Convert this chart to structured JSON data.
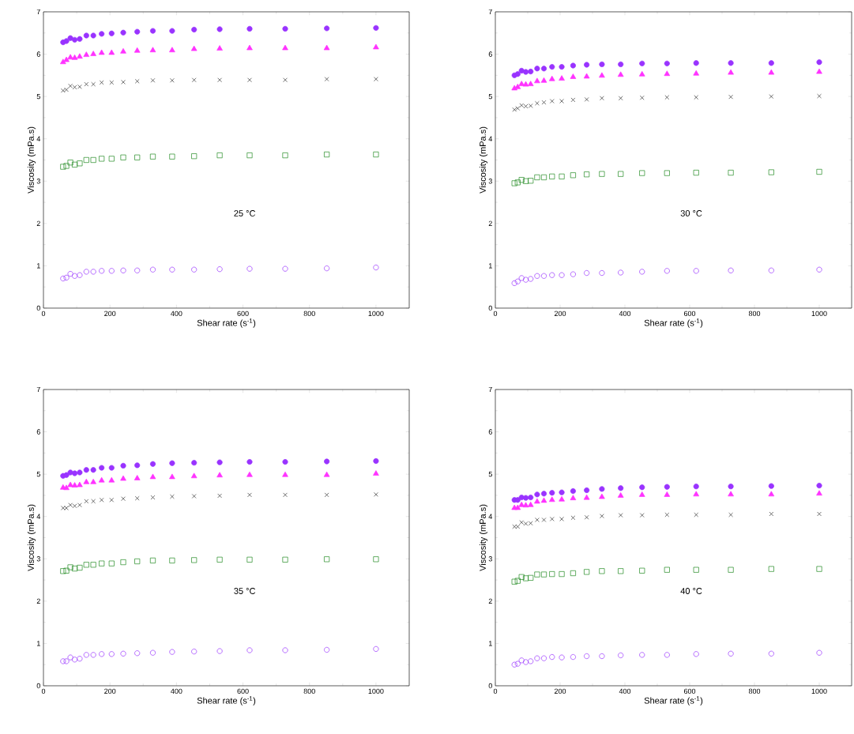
{
  "chart_data": [
    {
      "type": "scatter",
      "xlabel": "Shear rate (s$^{-1}$)",
      "ylabel": "Viscosity (mPa.s)",
      "annotations": [
        "25 °C"
      ],
      "xlim": [
        0,
        1100
      ],
      "ylim": [
        0,
        7
      ],
      "xticks": [
        0,
        200,
        400,
        600,
        800,
        1000
      ],
      "yticks": [
        0,
        1,
        2,
        3,
        4,
        5,
        6,
        7
      ],
      "x": [
        59,
        69,
        81,
        94,
        109,
        129,
        150,
        175,
        205,
        240,
        282,
        329,
        387,
        453,
        530,
        620,
        727,
        852,
        1000
      ],
      "series": [
        {
          "color": "#9933ff",
          "marker": "circle",
          "values": [
            6.28,
            6.31,
            6.38,
            6.34,
            6.36,
            6.44,
            6.44,
            6.48,
            6.49,
            6.51,
            6.53,
            6.55,
            6.55,
            6.58,
            6.59,
            6.6,
            6.6,
            6.61,
            6.62
          ]
        },
        {
          "color": "#ff33ff",
          "marker": "triangle",
          "values": [
            5.81,
            5.86,
            5.92,
            5.91,
            5.94,
            5.98,
            6.0,
            6.03,
            6.03,
            6.06,
            6.08,
            6.09,
            6.09,
            6.12,
            6.13,
            6.14,
            6.14,
            6.14,
            6.16
          ]
        },
        {
          "color": "#333333",
          "marker": "cross",
          "values": [
            5.14,
            5.16,
            5.25,
            5.22,
            5.23,
            5.29,
            5.29,
            5.33,
            5.33,
            5.34,
            5.36,
            5.38,
            5.38,
            5.39,
            5.39,
            5.39,
            5.39,
            5.41,
            5.41
          ]
        },
        {
          "color": "#228b22",
          "marker": "square",
          "values": [
            3.34,
            3.36,
            3.44,
            3.39,
            3.42,
            3.5,
            3.5,
            3.53,
            3.53,
            3.56,
            3.56,
            3.58,
            3.58,
            3.59,
            3.61,
            3.61,
            3.61,
            3.63,
            3.63
          ]
        },
        {
          "color": "#9933ff",
          "marker": "circle-open",
          "values": [
            0.7,
            0.72,
            0.81,
            0.76,
            0.78,
            0.86,
            0.86,
            0.88,
            0.88,
            0.89,
            0.89,
            0.91,
            0.91,
            0.91,
            0.92,
            0.93,
            0.93,
            0.94,
            0.96
          ]
        }
      ]
    },
    {
      "type": "scatter",
      "xlabel": "Shear rate (s$^{-1}$)",
      "ylabel": "Viscosity (mPa.s)",
      "annotations": [
        "30 °C"
      ],
      "xlim": [
        0,
        1100
      ],
      "ylim": [
        0,
        7
      ],
      "xticks": [
        0,
        200,
        400,
        600,
        800,
        1000
      ],
      "yticks": [
        0,
        1,
        2,
        3,
        4,
        5,
        6,
        7
      ],
      "x": [
        59,
        69,
        81,
        94,
        109,
        129,
        150,
        175,
        205,
        240,
        282,
        329,
        387,
        453,
        530,
        620,
        727,
        852,
        1000
      ],
      "series": [
        {
          "color": "#9933ff",
          "marker": "circle",
          "values": [
            5.5,
            5.53,
            5.61,
            5.58,
            5.59,
            5.66,
            5.66,
            5.7,
            5.7,
            5.73,
            5.75,
            5.76,
            5.76,
            5.78,
            5.78,
            5.79,
            5.79,
            5.79,
            5.81
          ]
        },
        {
          "color": "#ff33ff",
          "marker": "triangle",
          "values": [
            5.19,
            5.22,
            5.29,
            5.28,
            5.29,
            5.36,
            5.37,
            5.41,
            5.42,
            5.46,
            5.47,
            5.49,
            5.51,
            5.52,
            5.53,
            5.54,
            5.56,
            5.56,
            5.58
          ]
        },
        {
          "color": "#333333",
          "marker": "cross",
          "values": [
            4.69,
            4.72,
            4.79,
            4.77,
            4.78,
            4.84,
            4.86,
            4.89,
            4.89,
            4.92,
            4.93,
            4.96,
            4.96,
            4.97,
            4.98,
            4.98,
            4.99,
            5.0,
            5.01
          ]
        },
        {
          "color": "#228b22",
          "marker": "square",
          "values": [
            2.95,
            2.97,
            3.03,
            3.0,
            3.01,
            3.09,
            3.09,
            3.11,
            3.11,
            3.14,
            3.16,
            3.17,
            3.17,
            3.19,
            3.19,
            3.2,
            3.2,
            3.21,
            3.22
          ]
        },
        {
          "color": "#9933ff",
          "marker": "circle-open",
          "values": [
            0.59,
            0.63,
            0.71,
            0.67,
            0.69,
            0.76,
            0.76,
            0.78,
            0.78,
            0.8,
            0.83,
            0.83,
            0.84,
            0.86,
            0.88,
            0.88,
            0.89,
            0.89,
            0.91
          ]
        }
      ]
    },
    {
      "type": "scatter",
      "xlabel": "Shear rate (s$^{-1}$)",
      "ylabel": "Viscosity (mPa.s)",
      "annotations": [
        "35 °C"
      ],
      "xlim": [
        0,
        1100
      ],
      "ylim": [
        0,
        7
      ],
      "xticks": [
        0,
        200,
        400,
        600,
        800,
        1000
      ],
      "yticks": [
        0,
        1,
        2,
        3,
        4,
        5,
        6,
        7
      ],
      "x": [
        59,
        69,
        81,
        94,
        109,
        129,
        150,
        175,
        205,
        240,
        282,
        329,
        387,
        453,
        530,
        620,
        727,
        852,
        1000
      ],
      "series": [
        {
          "color": "#9933ff",
          "marker": "circle",
          "values": [
            4.96,
            4.98,
            5.04,
            5.02,
            5.04,
            5.1,
            5.1,
            5.15,
            5.15,
            5.2,
            5.21,
            5.24,
            5.26,
            5.27,
            5.28,
            5.29,
            5.29,
            5.3,
            5.31
          ]
        },
        {
          "color": "#ff33ff",
          "marker": "triangle",
          "values": [
            4.68,
            4.67,
            4.74,
            4.73,
            4.74,
            4.81,
            4.81,
            4.85,
            4.85,
            4.89,
            4.9,
            4.93,
            4.93,
            4.95,
            4.97,
            4.98,
            4.98,
            4.98,
            5.01
          ]
        },
        {
          "color": "#333333",
          "marker": "cross",
          "values": [
            4.2,
            4.2,
            4.27,
            4.25,
            4.27,
            4.36,
            4.36,
            4.39,
            4.39,
            4.42,
            4.43,
            4.45,
            4.47,
            4.48,
            4.49,
            4.51,
            4.51,
            4.51,
            4.52
          ]
        },
        {
          "color": "#228b22",
          "marker": "square",
          "values": [
            2.71,
            2.72,
            2.8,
            2.77,
            2.79,
            2.86,
            2.86,
            2.89,
            2.89,
            2.92,
            2.94,
            2.96,
            2.96,
            2.97,
            2.98,
            2.98,
            2.98,
            2.99,
            2.99
          ]
        },
        {
          "color": "#9933ff",
          "marker": "circle-open",
          "values": [
            0.58,
            0.58,
            0.67,
            0.62,
            0.64,
            0.73,
            0.73,
            0.75,
            0.75,
            0.76,
            0.77,
            0.78,
            0.8,
            0.81,
            0.82,
            0.84,
            0.84,
            0.85,
            0.87
          ]
        }
      ]
    },
    {
      "type": "scatter",
      "xlabel": "Shear rate (s$^{-1}$)",
      "ylabel": "Viscosity (mPa.s)",
      "annotations": [
        "40 °C"
      ],
      "xlim": [
        0,
        1100
      ],
      "ylim": [
        0,
        7
      ],
      "xticks": [
        0,
        200,
        400,
        600,
        800,
        1000
      ],
      "yticks": [
        0,
        1,
        2,
        3,
        4,
        5,
        6,
        7
      ],
      "x": [
        59,
        69,
        81,
        94,
        109,
        129,
        150,
        175,
        205,
        240,
        282,
        329,
        387,
        453,
        530,
        620,
        727,
        852,
        1000
      ],
      "series": [
        {
          "color": "#9933ff",
          "marker": "circle",
          "values": [
            4.39,
            4.39,
            4.45,
            4.44,
            4.45,
            4.52,
            4.54,
            4.56,
            4.57,
            4.6,
            4.62,
            4.65,
            4.67,
            4.69,
            4.7,
            4.71,
            4.71,
            4.72,
            4.73
          ]
        },
        {
          "color": "#ff33ff",
          "marker": "triangle",
          "values": [
            4.2,
            4.2,
            4.27,
            4.26,
            4.27,
            4.35,
            4.37,
            4.39,
            4.4,
            4.43,
            4.44,
            4.46,
            4.49,
            4.51,
            4.51,
            4.52,
            4.52,
            4.52,
            4.54
          ]
        },
        {
          "color": "#333333",
          "marker": "cross",
          "values": [
            3.76,
            3.76,
            3.86,
            3.83,
            3.84,
            3.92,
            3.92,
            3.94,
            3.94,
            3.97,
            3.98,
            4.01,
            4.03,
            4.03,
            4.04,
            4.04,
            4.04,
            4.06,
            4.06
          ]
        },
        {
          "color": "#228b22",
          "marker": "square",
          "values": [
            2.46,
            2.48,
            2.57,
            2.54,
            2.55,
            2.63,
            2.63,
            2.64,
            2.64,
            2.66,
            2.69,
            2.71,
            2.71,
            2.72,
            2.74,
            2.74,
            2.74,
            2.76,
            2.76
          ]
        },
        {
          "color": "#9933ff",
          "marker": "circle-open",
          "values": [
            0.5,
            0.52,
            0.6,
            0.56,
            0.58,
            0.65,
            0.65,
            0.68,
            0.67,
            0.68,
            0.7,
            0.7,
            0.72,
            0.73,
            0.73,
            0.75,
            0.76,
            0.76,
            0.78
          ]
        }
      ]
    }
  ]
}
